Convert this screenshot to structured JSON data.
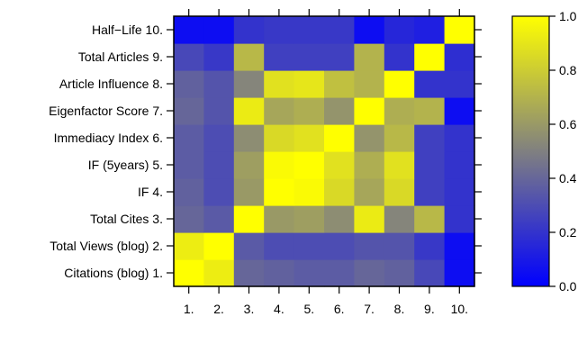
{
  "chart_data": {
    "type": "heatmap",
    "title": "",
    "xlabel": "",
    "ylabel": "",
    "x_categories": [
      "1.",
      "2.",
      "3.",
      "4.",
      "5.",
      "6.",
      "7.",
      "8.",
      "9.",
      "10."
    ],
    "y_categories": [
      "Citations (blog) 1.",
      "Total Views (blog) 2.",
      "Total Cites 3.",
      "IF 4.",
      "IF (5years) 5.",
      "Immediacy Index 6.",
      "Eigenfactor Score 7.",
      "Article Influence 8.",
      "Total Articles 9.",
      "Half−Life 10."
    ],
    "values": [
      [
        1.0,
        0.93,
        0.4,
        0.38,
        0.36,
        0.36,
        0.4,
        0.38,
        0.28,
        0.05
      ],
      [
        0.93,
        1.0,
        0.35,
        0.3,
        0.3,
        0.3,
        0.33,
        0.33,
        0.22,
        0.05
      ],
      [
        0.4,
        0.35,
        1.0,
        0.6,
        0.62,
        0.55,
        0.92,
        0.52,
        0.72,
        0.2
      ],
      [
        0.38,
        0.3,
        0.6,
        1.0,
        0.98,
        0.85,
        0.65,
        0.85,
        0.25,
        0.2
      ],
      [
        0.36,
        0.3,
        0.62,
        0.98,
        1.0,
        0.88,
        0.68,
        0.88,
        0.25,
        0.2
      ],
      [
        0.36,
        0.3,
        0.55,
        0.85,
        0.88,
        1.0,
        0.58,
        0.72,
        0.25,
        0.2
      ],
      [
        0.4,
        0.33,
        0.92,
        0.65,
        0.68,
        0.58,
        1.0,
        0.68,
        0.7,
        0.05
      ],
      [
        0.38,
        0.33,
        0.52,
        0.88,
        0.9,
        0.75,
        0.7,
        1.0,
        0.2,
        0.2
      ],
      [
        0.28,
        0.22,
        0.72,
        0.25,
        0.25,
        0.25,
        0.7,
        0.2,
        1.0,
        0.18
      ],
      [
        0.05,
        0.05,
        0.2,
        0.22,
        0.22,
        0.22,
        0.05,
        0.15,
        0.12,
        1.0
      ]
    ],
    "color_scale": {
      "low": "#0000ff",
      "mid": "#808080",
      "high": "#ffff00",
      "min": 0.0,
      "max": 1.0
    },
    "colorbar_ticks": [
      "0.0",
      "0.2",
      "0.4",
      "0.6",
      "0.8",
      "1.0"
    ],
    "colorbar_tick_values": [
      0.0,
      0.2,
      0.4,
      0.6,
      0.8,
      1.0
    ],
    "legend_placement": "right",
    "grid": false
  }
}
